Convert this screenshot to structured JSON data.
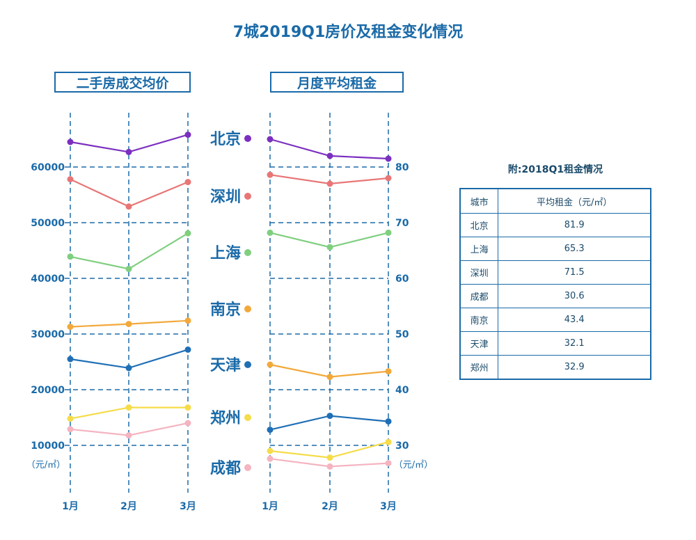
{
  "title": "7城2019Q1房价及租金变化情况",
  "left_panel_title": "二手房成交均价",
  "right_panel_title": "月度平均租金",
  "left_unit": "（元/㎡）",
  "right_unit": "（元/㎡）",
  "cities": [
    {
      "name": "北京",
      "color": "#7b2fbf"
    },
    {
      "name": "深圳",
      "color": "#e87676"
    },
    {
      "name": "上海",
      "color": "#7fcf7f"
    },
    {
      "name": "南京",
      "color": "#f2a93b"
    },
    {
      "name": "天津",
      "color": "#1f6fb5"
    },
    {
      "name": "郑州",
      "color": "#f5dc4a"
    },
    {
      "name": "成都",
      "color": "#f4b4c0"
    }
  ],
  "chart_data": [
    {
      "type": "line",
      "title": "二手房成交均价",
      "x": [
        "1月",
        "2月",
        "3月"
      ],
      "ylabel": "（元/㎡）",
      "yticks": [
        10000,
        20000,
        30000,
        40000,
        50000,
        60000
      ],
      "ylim": [
        8000,
        68000
      ],
      "series": [
        {
          "name": "北京",
          "values": [
            64500,
            62700,
            65800
          ]
        },
        {
          "name": "深圳",
          "values": [
            57800,
            52900,
            57300
          ]
        },
        {
          "name": "上海",
          "values": [
            43900,
            41700,
            48100
          ]
        },
        {
          "name": "南京",
          "values": [
            31300,
            31800,
            32400
          ]
        },
        {
          "name": "天津",
          "values": [
            25500,
            23900,
            27200
          ]
        },
        {
          "name": "郑州",
          "values": [
            14800,
            16800,
            16800
          ]
        },
        {
          "name": "成都",
          "values": [
            12900,
            11800,
            14000
          ]
        }
      ]
    },
    {
      "type": "line",
      "title": "月度平均租金",
      "x": [
        "1月",
        "2月",
        "3月"
      ],
      "ylabel": "（元/㎡）",
      "yticks": [
        30,
        40,
        50,
        60,
        70,
        80
      ],
      "ylim": [
        28,
        88
      ],
      "series": [
        {
          "name": "北京",
          "values": [
            85.0,
            82.0,
            81.5
          ]
        },
        {
          "name": "深圳",
          "values": [
            78.6,
            77.0,
            78.0
          ]
        },
        {
          "name": "上海",
          "values": [
            68.2,
            65.6,
            68.2
          ]
        },
        {
          "name": "南京",
          "values": [
            44.5,
            42.3,
            43.3
          ]
        },
        {
          "name": "天津",
          "values": [
            32.8,
            35.3,
            34.3
          ]
        },
        {
          "name": "郑州",
          "values": [
            29.0,
            27.8,
            30.6
          ]
        },
        {
          "name": "成都",
          "values": [
            27.6,
            26.2,
            26.8
          ]
        }
      ]
    }
  ],
  "ref_table": {
    "title": "附:2018Q1租金情况",
    "headers": [
      "城市",
      "平均租金（元/㎡）"
    ],
    "rows": [
      [
        "北京",
        "81.9"
      ],
      [
        "上海",
        "65.3"
      ],
      [
        "深圳",
        "71.5"
      ],
      [
        "成都",
        "30.6"
      ],
      [
        "南京",
        "43.4"
      ],
      [
        "天津",
        "32.1"
      ],
      [
        "郑州",
        "32.9"
      ]
    ]
  }
}
